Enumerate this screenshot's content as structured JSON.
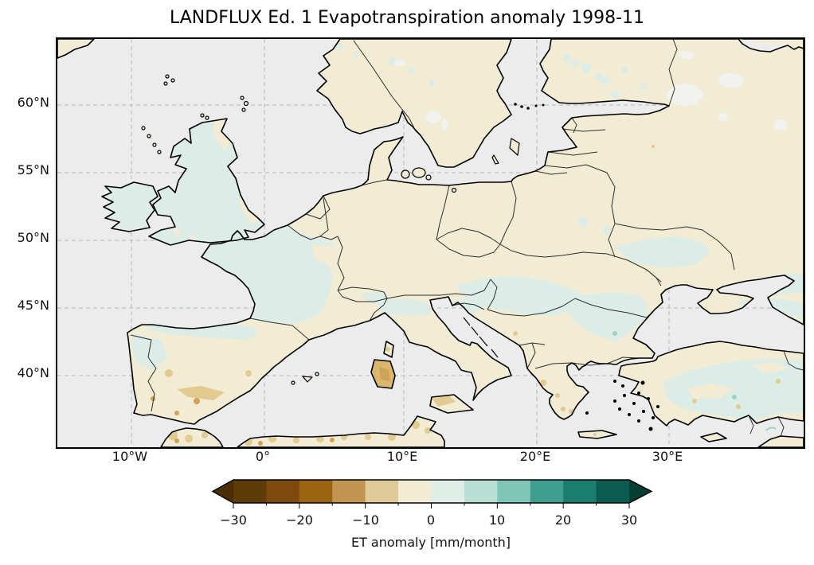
{
  "title": "LANDFLUX Ed. 1 Evapotranspiration anomaly 1998-11",
  "axes": {
    "lat_ticks": [
      "60°N",
      "55°N",
      "50°N",
      "45°N",
      "40°N"
    ],
    "lon_ticks": [
      "10°W",
      "0°",
      "10°E",
      "20°E",
      "30°E"
    ]
  },
  "colorbar": {
    "label": "ET anomaly [mm/month]",
    "tick_labels": [
      "−30",
      "−20",
      "−10",
      "0",
      "10",
      "20",
      "30"
    ],
    "tick_values": [
      -30,
      -20,
      -10,
      0,
      10,
      20,
      30
    ],
    "bin_width": 5,
    "segment_colors": [
      "#5e3c08",
      "#7d4a0b",
      "#9a6410",
      "#c49552",
      "#e0cb98",
      "#f3ecd4",
      "#e0eee8",
      "#b9ded3",
      "#7fc6b6",
      "#3f9e90",
      "#1a7d6e",
      "#0b5c50"
    ],
    "extend_left_color": "#4c2d06",
    "extend_right_color": "#073e32"
  },
  "map_colors": {
    "ocean": "#ececec",
    "land_neutral": "#f2ecd4",
    "land_positive": "#dcece6",
    "land_positive_strong": "#9ed3c4",
    "land_negative": "#e2cb90",
    "land_negative_strong": "#cfa258",
    "coastline": "#000000",
    "gridline": "#b8b8b8",
    "lake": "#f2f2f0"
  }
}
